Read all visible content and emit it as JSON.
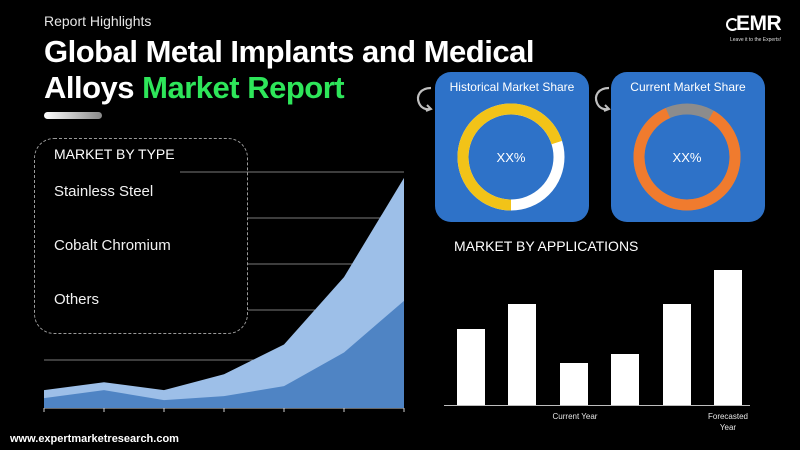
{
  "header": {
    "kicker": "Report Highlights",
    "title_main": "Global Metal Implants and Medical Alloys",
    "title_accent": "Market Report",
    "accent_color": "#2ee65a"
  },
  "logo": {
    "text": "EMR",
    "tagline": "Leave it to the Experts!"
  },
  "market_by_type": {
    "heading": "MARKET BY TYPE",
    "items": [
      "Stainless Steel",
      "Cobalt Chromium",
      "Others"
    ]
  },
  "share_cards": [
    {
      "title": "Historical Market Share",
      "value_text": "XX%",
      "card_color": "#2e72c8",
      "ring_color": "#f2c318",
      "rest_color": "#ffffff",
      "ring_fraction": 0.7
    },
    {
      "title": "Current Market Share",
      "value_text": "XX%",
      "card_color": "#2e72c8",
      "ring_color": "#f07b2e",
      "rest_color": "#8c8c8c",
      "ring_fraction": 0.85
    }
  ],
  "market_by_applications": {
    "heading": "MARKET BY APPLICATIONS",
    "labels": [
      "Current Year",
      "Forecasted Year"
    ]
  },
  "footer": {
    "url": "www.expertmarketresearch.com"
  },
  "chart_data": [
    {
      "type": "area",
      "title": "",
      "x": [
        0,
        1,
        2,
        3,
        4,
        5,
        6
      ],
      "series": [
        {
          "values": [
            4.5,
            6.5,
            4.5,
            8.5,
            16,
            33,
            58
          ],
          "color": "#9dbfe8"
        },
        {
          "values": [
            2.5,
            4.5,
            2,
            3,
            5.5,
            14,
            27
          ],
          "color": "#4f84c4"
        }
      ],
      "ylim": [
        0,
        60
      ],
      "grid": true
    },
    {
      "type": "bar",
      "title": "MARKET BY APPLICATIONS",
      "categories": [
        "",
        "",
        "Current Year",
        "",
        "",
        "Forecasted Year"
      ],
      "values": [
        55,
        73,
        30,
        37,
        73,
        97
      ],
      "ylim": [
        0,
        100
      ]
    }
  ]
}
